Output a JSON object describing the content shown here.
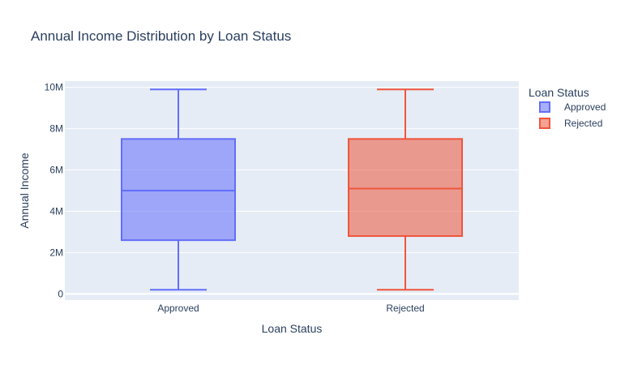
{
  "chart_data": {
    "type": "box",
    "title": "Annual Income Distribution by Loan Status",
    "xlabel": "Loan Status",
    "ylabel": "Annual Income",
    "categories": [
      "Approved",
      "Rejected"
    ],
    "ylim": [
      -300000,
      10300000
    ],
    "y_ticks": [
      {
        "value": 0,
        "label": "0"
      },
      {
        "value": 2000000,
        "label": "2M"
      },
      {
        "value": 4000000,
        "label": "4M"
      },
      {
        "value": 6000000,
        "label": "6M"
      },
      {
        "value": 8000000,
        "label": "8M"
      },
      {
        "value": 10000000,
        "label": "10M"
      }
    ],
    "grid": true,
    "legend_position": "top-right",
    "legend_title": "Loan Status",
    "series": [
      {
        "name": "Approved",
        "color": "#636efa",
        "fill": "rgba(99,110,250,0.55)",
        "min": 200000,
        "q1": 2600000,
        "median": 5000000,
        "q3": 7500000,
        "max": 9900000
      },
      {
        "name": "Rejected",
        "color": "#ef553b",
        "fill": "rgba(239,85,59,0.55)",
        "min": 200000,
        "q1": 2800000,
        "median": 5100000,
        "q3": 7500000,
        "max": 9900000
      }
    ]
  }
}
